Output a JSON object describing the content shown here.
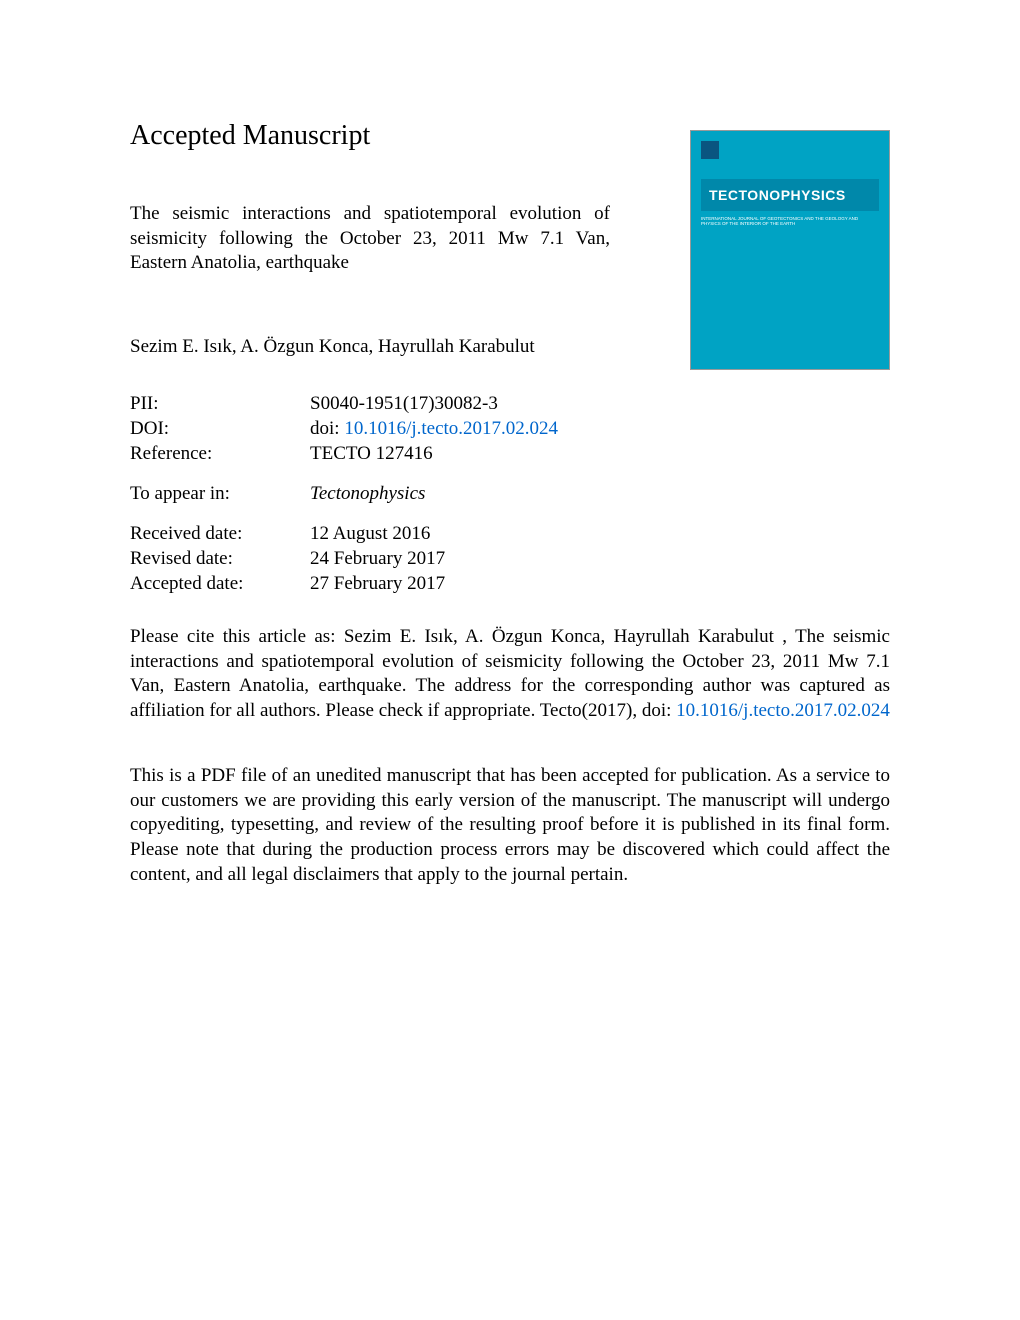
{
  "header": {
    "title": "Accepted Manuscript"
  },
  "article": {
    "title": "The seismic interactions and spatiotemporal evolution of seismicity following the October 23, 2011 Mw 7.1 Van, Eastern Anatolia, earthquake",
    "authors": "Sezim E. Isık, A. Özgun Konca, Hayrullah Karabulut"
  },
  "journal_cover": {
    "name": "TECTONOPHYSICS",
    "subtitle": "INTERNATIONAL JOURNAL OF GEOTECTONICS AND THE GEOLOGY AND PHYSICS OF THE INTERIOR OF THE EARTH",
    "background_color": "#00a3c4",
    "name_bg_color": "#0088aa"
  },
  "metadata": {
    "pii_label": "PII:",
    "pii_value": "S0040-1951(17)30082-3",
    "doi_label": "DOI:",
    "doi_prefix": "doi: ",
    "doi_link": "10.1016/j.tecto.2017.02.024",
    "reference_label": "Reference:",
    "reference_value": "TECTO 127416",
    "appear_label": "To appear in:",
    "appear_value": "Tectonophysics",
    "received_label": "Received date:",
    "received_value": "12 August 2016",
    "revised_label": "Revised date:",
    "revised_value": "24 February 2017",
    "accepted_label": "Accepted date:",
    "accepted_value": "27 February 2017"
  },
  "citation": {
    "text_before": "Please cite this article as: Sezim E. Isık, A. Özgun Konca, Hayrullah Karabulut , The seismic interactions and spatiotemporal evolution of seismicity following the October 23, 2011 Mw 7.1 Van, Eastern Anatolia, earthquake. The address for the corresponding author was captured as affiliation for all authors. Please check if appropriate. Tecto(2017), doi: ",
    "doi_link": "10.1016/j.tecto.2017.02.024"
  },
  "disclaimer": {
    "text": "This is a PDF file of an unedited manuscript that has been accepted for publication. As a service to our customers we are providing this early version of the manuscript. The manuscript will undergo copyediting, typesetting, and review of the resulting proof before it is published in its final form. Please note that during the production process errors may be discovered which could affect the content, and all legal disclaimers that apply to the journal pertain."
  },
  "colors": {
    "link_color": "#0066cc",
    "text_color": "#000000",
    "background": "#ffffff"
  },
  "typography": {
    "body_font": "Times New Roman",
    "header_size": 28,
    "body_size": 19
  }
}
